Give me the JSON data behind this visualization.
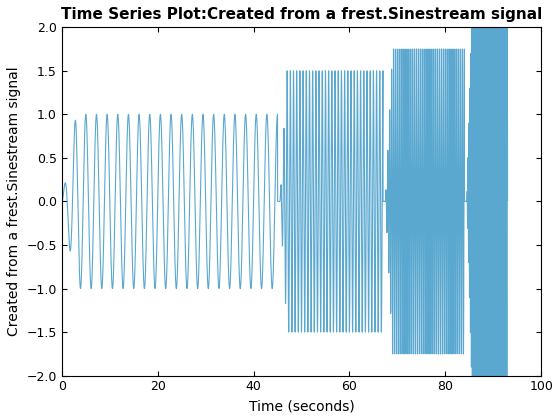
{
  "title": "Time Series Plot:Created from a frest.Sinestream signal",
  "xlabel": "Time (seconds)",
  "ylabel": "Created from a frest.Sinestream signal",
  "xlim": [
    0,
    100
  ],
  "ylim": [
    -2,
    2
  ],
  "line_color": "#5aa8d0",
  "line_width": 0.8,
  "xticks": [
    0,
    20,
    40,
    60,
    80,
    100
  ],
  "yticks": [
    -2,
    -1.5,
    -1,
    -0.5,
    0,
    0.5,
    1,
    1.5,
    2
  ],
  "bg_color": "#ffffff",
  "title_fontsize": 11,
  "label_fontsize": 10
}
